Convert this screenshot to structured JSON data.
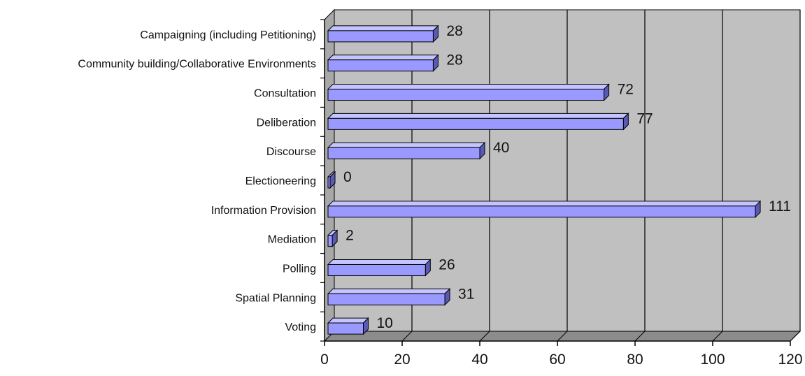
{
  "chart_data": {
    "type": "bar",
    "orientation": "horizontal",
    "style": "3d",
    "title": "",
    "xlabel": "",
    "ylabel": "",
    "categories": [
      "Campaigning (including Petitioning)",
      "Community building/Collaborative Environments",
      "Consultation",
      "Deliberation",
      "Discourse",
      "Electioneering",
      "Information Provision",
      "Mediation",
      "Polling",
      "Spatial Planning",
      "Voting"
    ],
    "values": [
      28,
      28,
      72,
      77,
      40,
      0,
      111,
      2,
      26,
      31,
      10
    ],
    "data_labels": [
      "28",
      "28",
      "72",
      "77",
      "40",
      "0",
      "111",
      "2",
      "26",
      "31",
      "10"
    ],
    "xlim": [
      0,
      120
    ],
    "xticks": [
      "0",
      "20",
      "40",
      "60",
      "80",
      "100",
      "120"
    ],
    "grid": true,
    "legend": "none",
    "colors": {
      "bar_front": "#9999ff",
      "bar_top": "#c4c4ff",
      "bar_side": "#5a5ab4",
      "bar_edge": "#000000",
      "plot_back_wall": "#c0c0c0",
      "plot_side_wall": "#a8a8a8",
      "plot_floor": "#8c8c8c",
      "gridline": "#000000"
    }
  }
}
